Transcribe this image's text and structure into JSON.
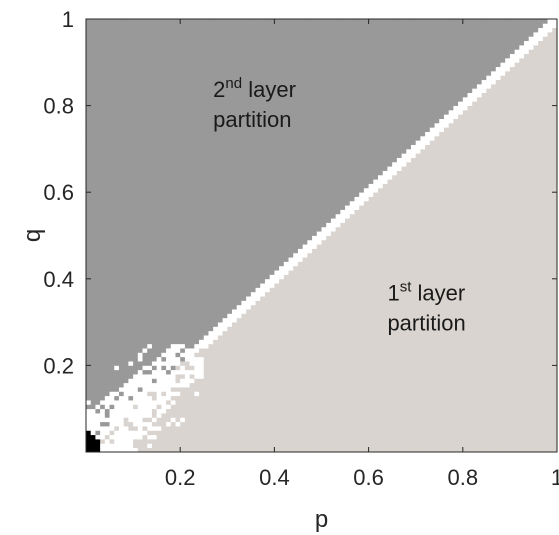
{
  "chart_data": {
    "type": "heatmap",
    "xlabel": "p",
    "ylabel": "q",
    "xlim": [
      0,
      1
    ],
    "ylim": [
      0,
      1
    ],
    "x_ticks": [
      "0.2",
      "0.4",
      "0.6",
      "0.8",
      "1"
    ],
    "y_ticks": [
      "0.2",
      "0.4",
      "0.6",
      "0.8",
      "1"
    ],
    "grid": false,
    "regions": [
      {
        "name": "2nd layer partition",
        "condition": "q > p",
        "color": "#999999"
      },
      {
        "name": "1st layer partition",
        "condition": "q < p",
        "color": "#d9d4cf"
      },
      {
        "name": "mixed boundary",
        "condition": "near q = p",
        "color": "#ffffff"
      },
      {
        "name": "corner",
        "condition": "p, q < 0.03",
        "color": "#000000"
      }
    ],
    "annotations": [
      {
        "id": "second",
        "base": "2",
        "sup": "nd",
        "line1_rest": " layer",
        "line2": "partition",
        "p": 0.27,
        "q": 0.82
      },
      {
        "id": "first",
        "base": "1",
        "sup": "st",
        "line1_rest": " layer",
        "line2": "partition",
        "p": 0.64,
        "q": 0.35
      }
    ]
  }
}
